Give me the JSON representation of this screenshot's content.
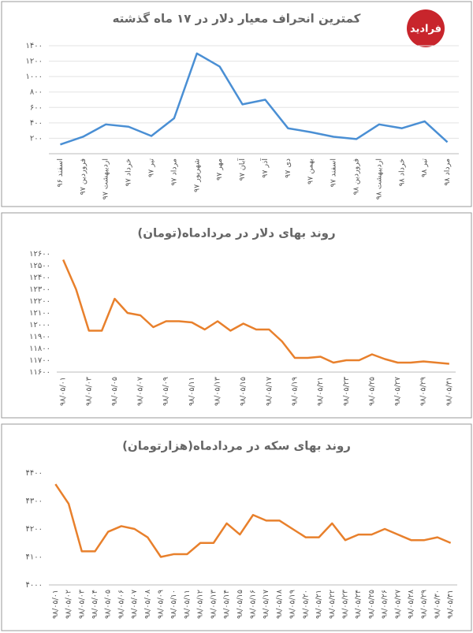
{
  "logo": "فرادید",
  "chart_data": [
    {
      "type": "line",
      "title": "کمترین انحراف معیار دلار در ۱۷ ماه گذشته",
      "categories": [
        "اسفند ۹۶",
        "فروردین ۹۷",
        "اردیبهشت ۹۷",
        "خرداد ۹۷",
        "تیر ۹۷",
        "مرداد ۹۷",
        "شهریور ۹۷",
        "مهر ۹۷",
        "آبان ۹۷",
        "آذر ۹۷",
        "دی ۹۷",
        "بهمن ۹۷",
        "اسفند ۹۷",
        "فروردین ۹۸",
        "اردیبهشت ۹۸",
        "خرداد ۹۸",
        "تیر ۹۸",
        "مرداد ۹۸"
      ],
      "series": [
        {
          "color": "#4a8fd4",
          "values": [
            120,
            220,
            380,
            350,
            230,
            460,
            1300,
            1130,
            640,
            700,
            330,
            280,
            220,
            190,
            380,
            330,
            420,
            150
          ]
        }
      ],
      "ylim": [
        0,
        1400
      ],
      "yticks": [
        {
          "value": 200,
          "label": "۲۰۰"
        },
        {
          "value": 400,
          "label": "۴۰۰"
        },
        {
          "value": 600,
          "label": "۶۰۰"
        },
        {
          "value": 800,
          "label": "۸۰۰"
        },
        {
          "value": 1000,
          "label": "۱۰۰۰"
        },
        {
          "value": 1200,
          "label": "۱۲۰۰"
        },
        {
          "value": 1400,
          "label": "۱۴۰۰"
        }
      ],
      "grid": true
    },
    {
      "type": "line",
      "title": "روند بهای دلار در مردادماه(تومان)",
      "categories": [
        "۹۸/۰۵/۰۱",
        null,
        "۹۸/۰۵/۰۳",
        null,
        "۹۸/۰۵/۰۵",
        null,
        "۹۸/۰۵/۰۷",
        null,
        "۹۸/۰۵/۰۹",
        null,
        "۹۸/۰۵/۱۱",
        null,
        "۹۸/۰۵/۱۳",
        null,
        "۹۸/۰۵/۱۵",
        null,
        "۹۸/۰۵/۱۷",
        null,
        "۹۸/۰۵/۱۹",
        null,
        "۹۸/۰۵/۲۱",
        null,
        "۹۸/۰۵/۲۳",
        null,
        "۹۸/۰۵/۲۵",
        null,
        "۹۸/۰۵/۲۷",
        null,
        "۹۸/۰۵/۲۹",
        null,
        "۹۸/۰۵/۳۱"
      ],
      "series": [
        {
          "color": "#e8802c",
          "values": [
            12550,
            12300,
            11950,
            11950,
            12220,
            12100,
            12080,
            11980,
            12030,
            12030,
            12020,
            11960,
            12030,
            11950,
            12010,
            11960,
            11960,
            11860,
            11720,
            11720,
            11730,
            11680,
            11700,
            11700,
            11750,
            11710,
            11680,
            11680,
            11690,
            11680,
            11670
          ]
        }
      ],
      "ylim": [
        11600,
        12600
      ],
      "yticks": [
        {
          "value": 11600,
          "label": "۱۱۶۰۰"
        },
        {
          "value": 11700,
          "label": "۱۱۷۰۰"
        },
        {
          "value": 11800,
          "label": "۱۱۸۰۰"
        },
        {
          "value": 11900,
          "label": "۱۱۹۰۰"
        },
        {
          "value": 12000,
          "label": "۱۲۰۰۰"
        },
        {
          "value": 12100,
          "label": "۱۲۱۰۰"
        },
        {
          "value": 12200,
          "label": "۱۲۲۰۰"
        },
        {
          "value": 12300,
          "label": "۱۲۳۰۰"
        },
        {
          "value": 12400,
          "label": "۱۲۴۰۰"
        },
        {
          "value": 12500,
          "label": "۱۲۵۰۰"
        },
        {
          "value": 12600,
          "label": "۱۲۶۰۰"
        }
      ],
      "grid": false
    },
    {
      "type": "line",
      "title": "روند بهای سکه در مردادماه(هزارتومان)",
      "categories": [
        "۹۸/۰۵/۰۱",
        "۹۸/۰۵/۰۲",
        "۹۸/۰۵/۰۳",
        "۹۸/۰۵/۰۴",
        "۹۸/۰۵/۰۵",
        "۹۸/۰۵/۰۶",
        "۹۸/۰۵/۰۷",
        "۹۸/۰۵/۰۸",
        "۹۸/۰۵/۰۹",
        "۹۸/۰۵/۱۰",
        "۹۸/۰۵/۱۱",
        "۹۸/۰۵/۱۲",
        "۹۸/۰۵/۱۳",
        "۹۸/۰۵/۱۴",
        "۹۸/۰۵/۱۵",
        "۹۸/۰۵/۱۶",
        "۹۸/۰۵/۱۷",
        "۹۸/۰۵/۱۸",
        "۹۸/۰۵/۱۹",
        "۹۸/۰۵/۲۰",
        "۹۸/۰۵/۲۱",
        "۹۸/۰۵/۲۲",
        "۹۸/۰۵/۲۳",
        "۹۸/۰۵/۲۴",
        "۹۸/۰۵/۲۵",
        "۹۸/۰۵/۲۶",
        "۹۸/۰۵/۲۷",
        "۹۸/۰۵/۲۸",
        "۹۸/۰۵/۲۹",
        "۹۸/۰۵/۳۰",
        "۹۸/۰۵/۳۱"
      ],
      "series": [
        {
          "color": "#e8802c",
          "values": [
            4360,
            4290,
            4120,
            4120,
            4190,
            4210,
            4200,
            4170,
            4100,
            4110,
            4110,
            4150,
            4150,
            4220,
            4180,
            4250,
            4230,
            4230,
            4200,
            4170,
            4170,
            4220,
            4160,
            4180,
            4180,
            4200,
            4180,
            4160,
            4160,
            4170,
            4150
          ]
        }
      ],
      "ylim": [
        4000,
        4400
      ],
      "yticks": [
        {
          "value": 4000,
          "label": "۴۰۰۰"
        },
        {
          "value": 4100,
          "label": "۴۱۰۰"
        },
        {
          "value": 4200,
          "label": "۴۲۰۰"
        },
        {
          "value": 4300,
          "label": "۴۳۰۰"
        },
        {
          "value": 4400,
          "label": "۴۴۰۰"
        }
      ],
      "grid": false
    }
  ]
}
